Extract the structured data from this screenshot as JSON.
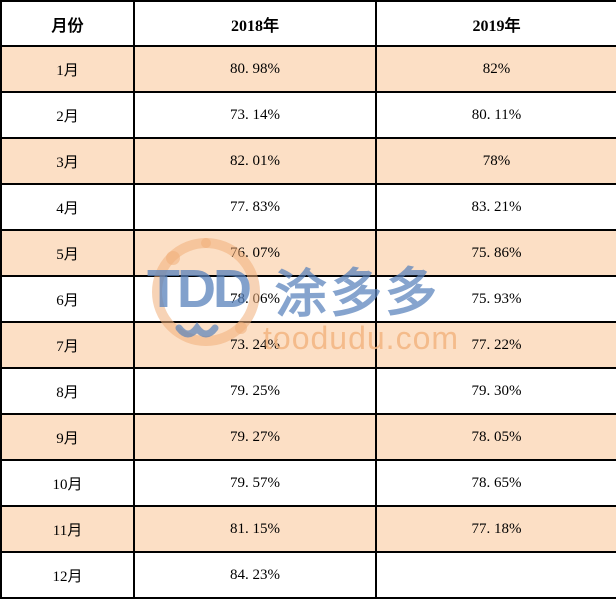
{
  "table": {
    "columns": [
      {
        "key": "month",
        "label": "月份"
      },
      {
        "key": "y2018",
        "label": "2018年"
      },
      {
        "key": "y2019",
        "label": "2019年"
      }
    ],
    "rows": [
      {
        "month": "1月",
        "y2018": "80. 98%",
        "y2019": "82%"
      },
      {
        "month": "2月",
        "y2018": "73. 14%",
        "y2019": "80. 11%"
      },
      {
        "month": "3月",
        "y2018": "82. 01%",
        "y2019": "78%"
      },
      {
        "month": "4月",
        "y2018": "77. 83%",
        "y2019": "83. 21%"
      },
      {
        "month": "5月",
        "y2018": "76. 07%",
        "y2019": "75. 86%"
      },
      {
        "month": "6月",
        "y2018": "78. 06%",
        "y2019": "75. 93%"
      },
      {
        "month": "7月",
        "y2018": "73. 24%",
        "y2019": "77. 22%"
      },
      {
        "month": "8月",
        "y2018": "79. 25%",
        "y2019": "79. 30%"
      },
      {
        "month": "9月",
        "y2018": "79. 27%",
        "y2019": "78. 05%"
      },
      {
        "month": "10月",
        "y2018": "79. 57%",
        "y2019": "78. 65%"
      },
      {
        "month": "11月",
        "y2018": "81. 15%",
        "y2019": "77. 18%"
      },
      {
        "month": "12月",
        "y2018": "84. 23%",
        "y2019": ""
      }
    ]
  },
  "watermark": {
    "logo_text": "TDD",
    "brand_text": "涂多多",
    "domain_text": "toodudu.com"
  },
  "colors": {
    "row_highlight": "#fcdfc5",
    "row_plain": "#ffffff",
    "border": "#000000",
    "watermark_blue": "#5881bb",
    "watermark_orange": "#f2b580"
  },
  "chart_data": {
    "type": "table",
    "title": "",
    "categories": [
      "1月",
      "2月",
      "3月",
      "4月",
      "5月",
      "6月",
      "7月",
      "8月",
      "9月",
      "10月",
      "11月",
      "12月"
    ],
    "series": [
      {
        "name": "2018年",
        "values": [
          80.98,
          73.14,
          82.01,
          77.83,
          76.07,
          78.06,
          73.24,
          79.25,
          79.27,
          79.57,
          81.15,
          84.23
        ]
      },
      {
        "name": "2019年",
        "values": [
          82,
          80.11,
          78,
          83.21,
          75.86,
          75.93,
          77.22,
          79.3,
          78.05,
          78.65,
          77.18,
          null
        ]
      }
    ],
    "unit": "%",
    "xlabel": "月份",
    "ylabel": ""
  }
}
